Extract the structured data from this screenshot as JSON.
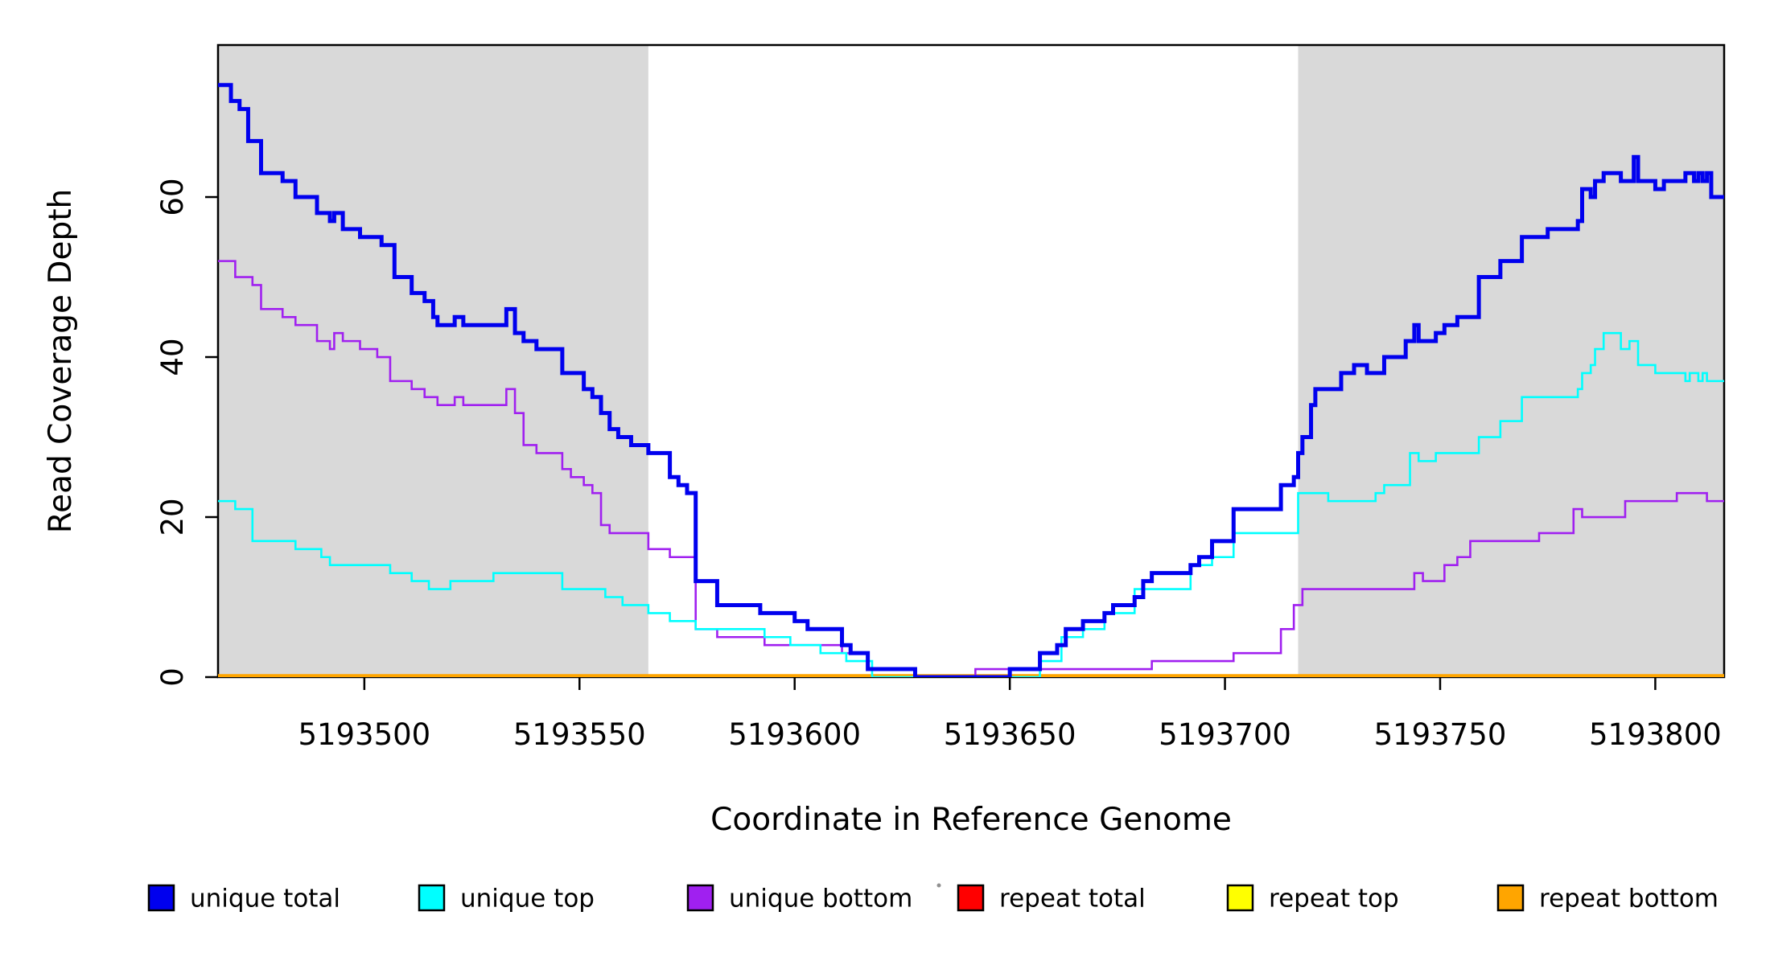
{
  "figure": {
    "background": "#FFFFFF"
  },
  "chart_data": {
    "type": "line",
    "subtype": "step-coverage-plot",
    "title": "",
    "xlabel": "Coordinate in Reference Genome",
    "ylabel": "Read Coverage Depth",
    "xlim": [
      5193466,
      5193816
    ],
    "ylim": [
      0,
      79
    ],
    "x_ticks": [
      5193500,
      5193550,
      5193600,
      5193650,
      5193700,
      5193750,
      5193800
    ],
    "y_ticks": [
      0,
      20,
      40,
      60
    ],
    "grid": "off",
    "legend_position": "bottom",
    "plot_background": "#FFFFFF",
    "shade_color": "#D9D9D9",
    "shaded_regions": [
      {
        "from": 5193466,
        "to": 5193566
      },
      {
        "from": 5193717,
        "to": 5193816
      }
    ],
    "series": [
      {
        "name": "unique total",
        "color": "#0000EE",
        "width": 5,
        "points": [
          [
            5193466,
            74
          ],
          [
            5193469,
            72
          ],
          [
            5193471,
            71
          ],
          [
            5193473,
            67
          ],
          [
            5193476,
            63
          ],
          [
            5193481,
            62
          ],
          [
            5193484,
            60
          ],
          [
            5193489,
            58
          ],
          [
            5193492,
            57
          ],
          [
            5193493,
            58
          ],
          [
            5193495,
            56
          ],
          [
            5193499,
            55
          ],
          [
            5193504,
            54
          ],
          [
            5193507,
            50
          ],
          [
            5193511,
            48
          ],
          [
            5193514,
            47
          ],
          [
            5193516,
            45
          ],
          [
            5193517,
            44
          ],
          [
            5193521,
            45
          ],
          [
            5193523,
            44
          ],
          [
            5193533,
            46
          ],
          [
            5193535,
            43
          ],
          [
            5193537,
            42
          ],
          [
            5193540,
            41
          ],
          [
            5193546,
            38
          ],
          [
            5193551,
            36
          ],
          [
            5193553,
            35
          ],
          [
            5193555,
            33
          ],
          [
            5193557,
            31
          ],
          [
            5193559,
            30
          ],
          [
            5193562,
            29
          ],
          [
            5193566,
            28
          ],
          [
            5193571,
            25
          ],
          [
            5193573,
            24
          ],
          [
            5193575,
            23
          ],
          [
            5193577,
            12
          ],
          [
            5193582,
            9
          ],
          [
            5193592,
            8
          ],
          [
            5193600,
            7
          ],
          [
            5193603,
            6
          ],
          [
            5193611,
            4
          ],
          [
            5193613,
            3
          ],
          [
            5193617,
            1
          ],
          [
            5193628,
            0
          ],
          [
            5193650,
            1
          ],
          [
            5193657,
            3
          ],
          [
            5193661,
            4
          ],
          [
            5193663,
            6
          ],
          [
            5193667,
            7
          ],
          [
            5193672,
            8
          ],
          [
            5193674,
            9
          ],
          [
            5193679,
            10
          ],
          [
            5193681,
            12
          ],
          [
            5193683,
            13
          ],
          [
            5193692,
            14
          ],
          [
            5193694,
            15
          ],
          [
            5193697,
            17
          ],
          [
            5193702,
            21
          ],
          [
            5193713,
            24
          ],
          [
            5193716,
            25
          ],
          [
            5193717,
            28
          ],
          [
            5193718,
            30
          ],
          [
            5193720,
            34
          ],
          [
            5193721,
            36
          ],
          [
            5193727,
            38
          ],
          [
            5193730,
            39
          ],
          [
            5193733,
            38
          ],
          [
            5193737,
            40
          ],
          [
            5193742,
            42
          ],
          [
            5193744,
            44
          ],
          [
            5193745,
            42
          ],
          [
            5193749,
            43
          ],
          [
            5193751,
            44
          ],
          [
            5193754,
            45
          ],
          [
            5193759,
            50
          ],
          [
            5193764,
            52
          ],
          [
            5193769,
            55
          ],
          [
            5193775,
            56
          ],
          [
            5193782,
            57
          ],
          [
            5193783,
            61
          ],
          [
            5193785,
            60
          ],
          [
            5193786,
            62
          ],
          [
            5193788,
            63
          ],
          [
            5193792,
            62
          ],
          [
            5193795,
            65
          ],
          [
            5193796,
            62
          ],
          [
            5193800,
            61
          ],
          [
            5193802,
            62
          ],
          [
            5193807,
            63
          ],
          [
            5193809,
            62
          ],
          [
            5193810,
            63
          ],
          [
            5193811,
            62
          ],
          [
            5193812,
            63
          ],
          [
            5193813,
            60
          ]
        ]
      },
      {
        "name": "unique top",
        "color": "#00FFFF",
        "width": 2.6,
        "points": [
          [
            5193466,
            22
          ],
          [
            5193470,
            21
          ],
          [
            5193474,
            17
          ],
          [
            5193484,
            16
          ],
          [
            5193490,
            15
          ],
          [
            5193492,
            14
          ],
          [
            5193506,
            13
          ],
          [
            5193511,
            12
          ],
          [
            5193515,
            11
          ],
          [
            5193520,
            12
          ],
          [
            5193530,
            13
          ],
          [
            5193546,
            11
          ],
          [
            5193556,
            10
          ],
          [
            5193560,
            9
          ],
          [
            5193566,
            8
          ],
          [
            5193571,
            7
          ],
          [
            5193577,
            6
          ],
          [
            5193593,
            5
          ],
          [
            5193599,
            4
          ],
          [
            5193606,
            3
          ],
          [
            5193612,
            2
          ],
          [
            5193618,
            0
          ],
          [
            5193657,
            2
          ],
          [
            5193662,
            5
          ],
          [
            5193667,
            6
          ],
          [
            5193672,
            8
          ],
          [
            5193679,
            11
          ],
          [
            5193692,
            14
          ],
          [
            5193697,
            15
          ],
          [
            5193702,
            18
          ],
          [
            5193717,
            23
          ],
          [
            5193724,
            22
          ],
          [
            5193735,
            23
          ],
          [
            5193737,
            24
          ],
          [
            5193743,
            28
          ],
          [
            5193745,
            27
          ],
          [
            5193749,
            28
          ],
          [
            5193759,
            30
          ],
          [
            5193764,
            32
          ],
          [
            5193769,
            35
          ],
          [
            5193782,
            36
          ],
          [
            5193783,
            38
          ],
          [
            5193785,
            39
          ],
          [
            5193786,
            41
          ],
          [
            5193788,
            43
          ],
          [
            5193792,
            41
          ],
          [
            5193794,
            42
          ],
          [
            5193796,
            39
          ],
          [
            5193800,
            38
          ],
          [
            5193807,
            37
          ],
          [
            5193808,
            38
          ],
          [
            5193810,
            37
          ],
          [
            5193811,
            38
          ],
          [
            5193812,
            37
          ]
        ]
      },
      {
        "name": "unique bottom",
        "color": "#A020F0",
        "width": 2.6,
        "points": [
          [
            5193466,
            52
          ],
          [
            5193470,
            50
          ],
          [
            5193474,
            49
          ],
          [
            5193476,
            46
          ],
          [
            5193481,
            45
          ],
          [
            5193484,
            44
          ],
          [
            5193489,
            42
          ],
          [
            5193492,
            41
          ],
          [
            5193493,
            43
          ],
          [
            5193495,
            42
          ],
          [
            5193499,
            41
          ],
          [
            5193503,
            40
          ],
          [
            5193506,
            37
          ],
          [
            5193511,
            36
          ],
          [
            5193514,
            35
          ],
          [
            5193517,
            34
          ],
          [
            5193521,
            35
          ],
          [
            5193523,
            34
          ],
          [
            5193533,
            36
          ],
          [
            5193535,
            33
          ],
          [
            5193537,
            29
          ],
          [
            5193540,
            28
          ],
          [
            5193546,
            26
          ],
          [
            5193548,
            25
          ],
          [
            5193551,
            24
          ],
          [
            5193553,
            23
          ],
          [
            5193555,
            19
          ],
          [
            5193557,
            18
          ],
          [
            5193566,
            16
          ],
          [
            5193571,
            15
          ],
          [
            5193577,
            6
          ],
          [
            5193582,
            5
          ],
          [
            5193593,
            4
          ],
          [
            5193611,
            3
          ],
          [
            5193617,
            1
          ],
          [
            5193628,
            0
          ],
          [
            5193642,
            1
          ],
          [
            5193683,
            2
          ],
          [
            5193702,
            3
          ],
          [
            5193713,
            6
          ],
          [
            5193716,
            9
          ],
          [
            5193718,
            11
          ],
          [
            5193744,
            13
          ],
          [
            5193746,
            12
          ],
          [
            5193751,
            14
          ],
          [
            5193754,
            15
          ],
          [
            5193757,
            17
          ],
          [
            5193773,
            18
          ],
          [
            5193781,
            21
          ],
          [
            5193783,
            20
          ],
          [
            5193793,
            22
          ],
          [
            5193805,
            23
          ],
          [
            5193812,
            22
          ]
        ]
      },
      {
        "name": "repeat total",
        "color": "#FF0000",
        "width": 6,
        "points": [
          [
            5193466,
            0
          ]
        ]
      },
      {
        "name": "repeat top",
        "color": "#FFFF00",
        "width": 3,
        "points": [
          [
            5193466,
            0
          ]
        ]
      },
      {
        "name": "repeat bottom",
        "color": "#FFA500",
        "width": 4.5,
        "points": [
          [
            5193466,
            0
          ]
        ]
      }
    ]
  },
  "legend": {
    "labels": [
      "unique total",
      "unique top",
      "unique bottom",
      "repeat total",
      "repeat top",
      "repeat bottom"
    ],
    "swatch_colors": [
      "#0000EE",
      "#00FFFF",
      "#A020F0",
      "#FF0000",
      "#FFFF00",
      "#FFA500"
    ]
  }
}
